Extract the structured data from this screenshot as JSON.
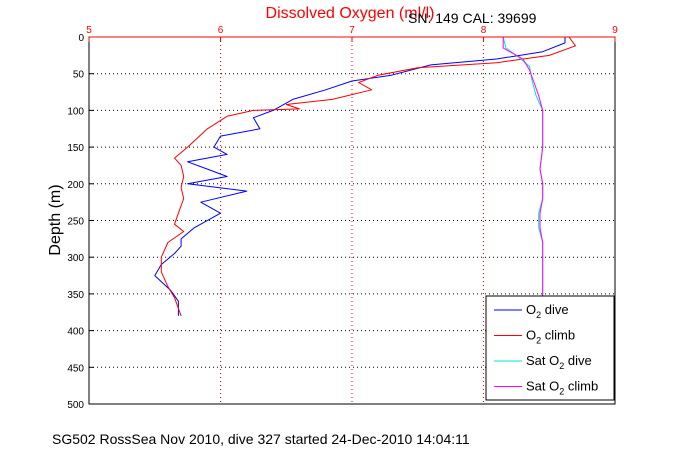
{
  "chart_data": {
    "type": "line",
    "title": "Dissolved Oxygen (ml/l)",
    "subtitle": "SN: 149  CAL: 39699",
    "ylabel": "Depth (m)",
    "xlabel": "",
    "footer": "SG502 RossSea Nov 2010, dive 327 started 24-Dec-2010 14:04:11",
    "xlim": [
      5,
      9
    ],
    "ylim": [
      0,
      500
    ],
    "y_reversed": true,
    "x_axis_position": "top",
    "grid": true,
    "xticks": [
      "5",
      "6",
      "7",
      "8",
      "9"
    ],
    "yticks": [
      "0",
      "50",
      "100",
      "150",
      "200",
      "250",
      "300",
      "350",
      "400",
      "450",
      "500"
    ],
    "legend_position": "bottom-right",
    "series": [
      {
        "name": "O2 dive",
        "legend": {
          "pre": "O",
          "sub": "2",
          "post": " dive"
        },
        "color": "#0000ff",
        "x": [
          8.62,
          8.62,
          8.45,
          8.1,
          7.6,
          7.3,
          7.0,
          6.8,
          6.55,
          6.4,
          6.25,
          6.3,
          6.0,
          5.95,
          6.05,
          5.75,
          5.9,
          6.05,
          5.75,
          6.2,
          5.85,
          6.0,
          5.8,
          5.7,
          5.7,
          5.65,
          5.55,
          5.5,
          5.62,
          5.68,
          5.68,
          5.68
        ],
        "y": [
          0,
          8,
          20,
          30,
          38,
          52,
          60,
          72,
          85,
          100,
          110,
          125,
          135,
          150,
          160,
          170,
          180,
          190,
          200,
          210,
          225,
          240,
          260,
          275,
          285,
          295,
          310,
          325,
          345,
          360,
          375,
          380
        ]
      },
      {
        "name": "O2 climb",
        "legend": {
          "pre": "O",
          "sub": "2",
          "post": " climb"
        },
        "color": "#ff0000",
        "x": [
          8.65,
          8.7,
          8.5,
          8.1,
          7.5,
          7.2,
          7.05,
          7.15,
          6.85,
          6.5,
          6.6,
          6.25,
          6.05,
          5.9,
          5.75,
          5.65,
          5.7,
          5.72,
          5.7,
          5.72,
          5.68,
          5.65,
          5.72,
          5.6,
          5.55,
          5.55,
          5.6,
          5.65,
          5.68,
          5.7
        ],
        "y": [
          0,
          12,
          25,
          35,
          42,
          52,
          62,
          72,
          85,
          92,
          98,
          100,
          108,
          125,
          150,
          165,
          175,
          190,
          205,
          220,
          240,
          255,
          265,
          280,
          300,
          320,
          340,
          355,
          370,
          380
        ]
      },
      {
        "name": "Sat O2 dive",
        "legend": {
          "pre": "Sat O",
          "sub": "2",
          "post": " dive"
        },
        "color": "#00e0e0",
        "x": [
          8.15,
          8.17,
          8.25,
          8.35,
          8.37,
          8.4,
          8.45,
          8.45,
          8.45,
          8.43,
          8.45,
          8.45,
          8.42,
          8.42,
          8.45,
          8.45,
          8.45,
          8.45
        ],
        "y": [
          0,
          15,
          25,
          40,
          60,
          80,
          100,
          120,
          150,
          180,
          200,
          220,
          240,
          260,
          280,
          300,
          330,
          360
        ]
      },
      {
        "name": "Sat O2 climb",
        "legend": {
          "pre": "Sat O",
          "sub": "2",
          "post": " climb"
        },
        "color": "#ff00ff",
        "x": [
          8.15,
          8.15,
          8.3,
          8.35,
          8.38,
          8.42,
          8.45,
          8.45,
          8.45,
          8.43,
          8.45,
          8.45,
          8.43,
          8.43,
          8.45,
          8.45,
          8.45,
          8.45
        ],
        "y": [
          0,
          15,
          30,
          45,
          60,
          80,
          100,
          120,
          150,
          180,
          200,
          220,
          240,
          260,
          280,
          300,
          330,
          360
        ]
      }
    ]
  }
}
